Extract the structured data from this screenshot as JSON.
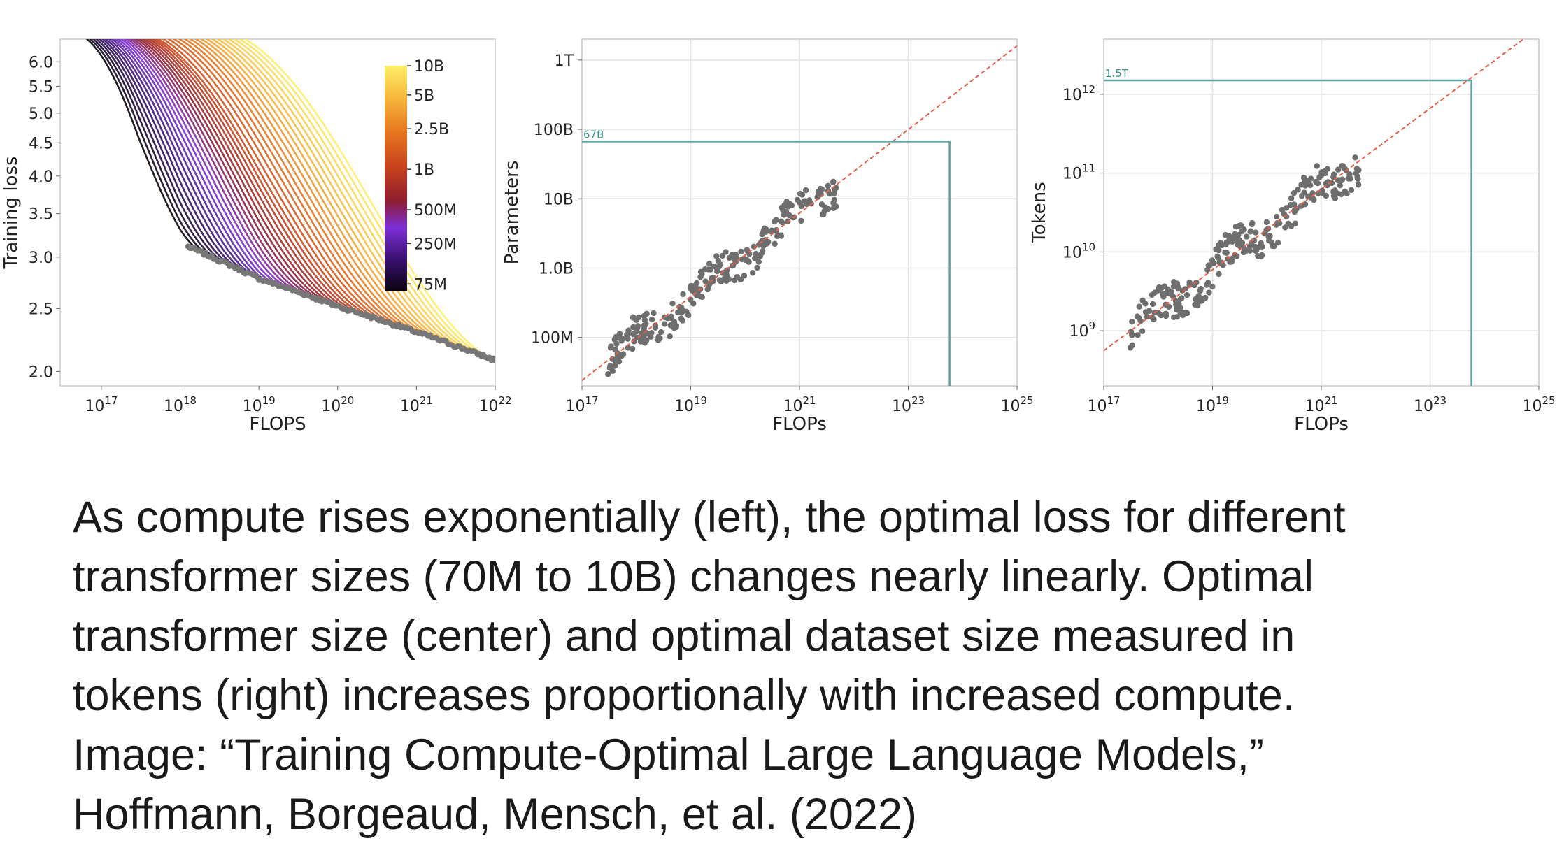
{
  "chart_data": [
    {
      "type": "line",
      "x_scale": "log",
      "y_scale": "log",
      "xlabel": "FLOPS",
      "ylabel": "Training loss",
      "xlim": [
        3e+16,
        1e+22
      ],
      "ylim": [
        1.9,
        6.5
      ],
      "x_ticks": [
        {
          "b": "10",
          "e": "17"
        },
        {
          "b": "10",
          "e": "18"
        },
        {
          "b": "10",
          "e": "19"
        },
        {
          "b": "10",
          "e": "20"
        },
        {
          "b": "10",
          "e": "21"
        },
        {
          "b": "10",
          "e": "22"
        }
      ],
      "y_ticks": [
        "2.0",
        "2.5",
        "3.0",
        "3.5",
        "4.0",
        "4.5",
        "5.0",
        "5.5",
        "6.0"
      ],
      "grid": false,
      "colorbar": {
        "position": "top-right",
        "ticks": [
          "10B",
          "5B",
          "2.5B",
          "1B",
          "500M",
          "250M",
          "75M"
        ],
        "colors": [
          "#ffee6a",
          "#f6b83c",
          "#e6741f",
          "#c8431d",
          "#8e1d2e",
          "#7d2fd8",
          "#3a1070",
          "#0a0410"
        ]
      },
      "curve_count": 40,
      "envelope": {
        "x": [
          3e+17,
          1e+18,
          1e+19,
          1e+20,
          1e+21,
          1e+22
        ],
        "y": [
          3.45,
          3.15,
          2.78,
          2.52,
          2.3,
          2.08
        ]
      }
    },
    {
      "type": "scatter",
      "x_scale": "log",
      "y_scale": "log",
      "xlabel": "FLOPs",
      "ylabel": "Parameters",
      "xlim": [
        1e+17,
        1e+25
      ],
      "ylim": [
        20000000.0,
        2000000000000.0
      ],
      "x_ticks": [
        {
          "b": "10",
          "e": "17"
        },
        {
          "b": "10",
          "e": "19"
        },
        {
          "b": "10",
          "e": "21"
        },
        {
          "b": "10",
          "e": "23"
        },
        {
          "b": "10",
          "e": "25"
        }
      ],
      "y_ticks": [
        "100M",
        "1.0B",
        "10B",
        "100B",
        "1T"
      ],
      "grid": true,
      "fit_line": {
        "x": [
          1e+17,
          1e+25
        ],
        "y": [
          24000000.0,
          1600000000000.0
        ]
      },
      "annotation": {
        "label": "67B",
        "x": 5.76e+23,
        "y": 67000000000.0
      },
      "point_range": {
        "x": [
          3e+17,
          5e+21
        ],
        "y": [
          70000000.0,
          10000000000.0
        ]
      }
    },
    {
      "type": "scatter",
      "x_scale": "log",
      "y_scale": "log",
      "xlabel": "FLOPs",
      "ylabel": "Tokens",
      "xlim": [
        1e+17,
        1e+25
      ],
      "ylim": [
        200000000.0,
        5000000000000.0
      ],
      "x_ticks": [
        {
          "b": "10",
          "e": "17"
        },
        {
          "b": "10",
          "e": "19"
        },
        {
          "b": "10",
          "e": "21"
        },
        {
          "b": "10",
          "e": "23"
        },
        {
          "b": "10",
          "e": "25"
        }
      ],
      "y_ticks": [
        {
          "b": "10",
          "e": "9"
        },
        {
          "b": "10",
          "e": "10"
        },
        {
          "b": "10",
          "e": "11"
        },
        {
          "b": "10",
          "e": "12"
        }
      ],
      "grid": true,
      "fit_line": {
        "x": [
          1e+17,
          1e+25
        ],
        "y": [
          560000000.0,
          7000000000000.0
        ]
      },
      "annotation": {
        "label": "1.5T",
        "x": 5.76e+23,
        "y": 1500000000000.0
      },
      "point_range": {
        "x": [
          3e+17,
          5e+21
        ],
        "y": [
          600000000.0,
          180000000000.0
        ]
      }
    }
  ],
  "caption": {
    "lines": [
      "As compute rises exponentially (left), the optimal loss for different",
      "transformer sizes (70M to 10B) changes nearly linearly. Optimal",
      "transformer size (center) and optimal dataset size measured in",
      "tokens (right) increases proportionally with increased compute.",
      "Image: “Training Compute-Optimal Large Language Models,”",
      "Hoffmann, Borgeaud, Mensch, et al. (2022)"
    ]
  }
}
